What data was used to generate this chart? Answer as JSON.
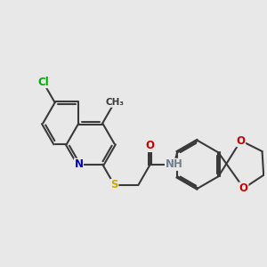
{
  "background_color": "#e8e8e8",
  "bond_color": "#3a3a3a",
  "bond_width": 1.5,
  "atom_colors": {
    "N": "#0000cc",
    "S": "#ccaa00",
    "O": "#cc0000",
    "Cl": "#00aa00",
    "C": "#3a3a3a",
    "H": "#708090"
  },
  "font_size": 8.5
}
